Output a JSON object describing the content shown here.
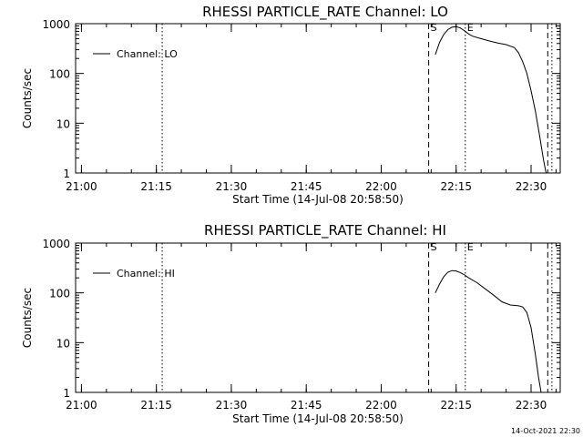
{
  "footer": {
    "timestamp": "14-Oct-2021 22:30"
  },
  "chart_data": [
    {
      "type": "line",
      "title": "RHESSI PARTICLE_RATE Channel: LO",
      "xlabel": "Start Time (14-Jul-08 20:58:50)",
      "ylabel": "Counts/sec",
      "yscale": "log",
      "ylim": [
        1,
        1000
      ],
      "xlim_minutes_after_start": [
        0,
        97
      ],
      "x_ticks": [
        "21:00",
        "21:15",
        "21:30",
        "21:45",
        "22:00",
        "22:15",
        "22:30"
      ],
      "y_ticks": [
        "1",
        "10",
        "100",
        "1000"
      ],
      "grid": false,
      "legend_position": "top-left",
      "markers": [
        {
          "label": "",
          "time": "21:16:10",
          "style": "dotted"
        },
        {
          "label": "S",
          "time": "22:09:30",
          "style": "dashed"
        },
        {
          "label": "E",
          "time": "22:16:50",
          "style": "dotted"
        },
        {
          "label": "",
          "time": "22:33:20",
          "style": "dashed"
        },
        {
          "label": "",
          "time": "22:34:10",
          "style": "dotted"
        }
      ],
      "series": [
        {
          "name": "Channel: LO",
          "points": [
            [
              "22:10:50",
              240
            ],
            [
              "22:11:40",
              420
            ],
            [
              "22:12:30",
              600
            ],
            [
              "22:13:20",
              760
            ],
            [
              "22:14:10",
              850
            ],
            [
              "22:15:00",
              870
            ],
            [
              "22:15:50",
              820
            ],
            [
              "22:16:40",
              720
            ],
            [
              "22:17:30",
              620
            ],
            [
              "22:18:20",
              560
            ],
            [
              "22:20:00",
              500
            ],
            [
              "22:21:40",
              450
            ],
            [
              "22:23:20",
              410
            ],
            [
              "22:25:00",
              380
            ],
            [
              "22:26:40",
              330
            ],
            [
              "22:27:30",
              260
            ],
            [
              "22:28:20",
              170
            ],
            [
              "22:29:10",
              100
            ],
            [
              "22:30:00",
              45
            ],
            [
              "22:30:50",
              18
            ],
            [
              "22:31:40",
              6
            ],
            [
              "22:32:30",
              1.8
            ],
            [
              "22:33:00",
              1
            ]
          ]
        }
      ]
    },
    {
      "type": "line",
      "title": "RHESSI PARTICLE_RATE Channel: HI",
      "xlabel": "Start Time (14-Jul-08 20:58:50)",
      "ylabel": "Counts/sec",
      "yscale": "log",
      "ylim": [
        1,
        1000
      ],
      "xlim_minutes_after_start": [
        0,
        97
      ],
      "x_ticks": [
        "21:00",
        "21:15",
        "21:30",
        "21:45",
        "22:00",
        "22:15",
        "22:30"
      ],
      "y_ticks": [
        "1",
        "10",
        "100",
        "1000"
      ],
      "grid": false,
      "legend_position": "top-left",
      "markers": [
        {
          "label": "",
          "time": "21:16:10",
          "style": "dotted"
        },
        {
          "label": "S",
          "time": "22:09:30",
          "style": "dashed"
        },
        {
          "label": "E",
          "time": "22:16:50",
          "style": "dotted"
        },
        {
          "label": "",
          "time": "22:33:20",
          "style": "dashed"
        },
        {
          "label": "",
          "time": "22:34:10",
          "style": "dotted"
        }
      ],
      "series": [
        {
          "name": "Channel: HI",
          "points": [
            [
              "22:10:50",
              100
            ],
            [
              "22:11:40",
              150
            ],
            [
              "22:12:30",
              210
            ],
            [
              "22:13:20",
              260
            ],
            [
              "22:14:10",
              280
            ],
            [
              "22:15:00",
              275
            ],
            [
              "22:15:50",
              255
            ],
            [
              "22:16:40",
              230
            ],
            [
              "22:17:30",
              200
            ],
            [
              "22:19:10",
              160
            ],
            [
              "22:20:50",
              120
            ],
            [
              "22:22:30",
              90
            ],
            [
              "22:24:10",
              66
            ],
            [
              "22:25:50",
              57
            ],
            [
              "22:27:30",
              55
            ],
            [
              "22:28:20",
              52
            ],
            [
              "22:29:10",
              40
            ],
            [
              "22:30:00",
              20
            ],
            [
              "22:30:50",
              6
            ],
            [
              "22:31:30",
              2
            ],
            [
              "22:32:00",
              1
            ]
          ]
        }
      ]
    }
  ]
}
